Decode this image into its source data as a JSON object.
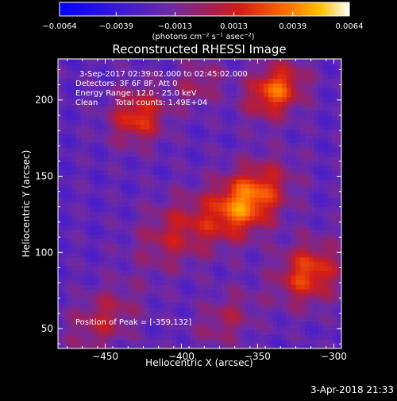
{
  "chart_data": {
    "type": "heatmap",
    "title": "Reconstructed RHESSI Image",
    "xlabel": "Heliocentric X (arcsec)",
    "ylabel": "Heliocentric Y (arcsec)",
    "xlim": [
      -481,
      -295
    ],
    "ylim": [
      37,
      227
    ],
    "x_ticks": [
      -450,
      -400,
      -350,
      -300
    ],
    "y_ticks": [
      50,
      100,
      150,
      200
    ],
    "colorbar": {
      "range": [
        -0.0064,
        0.0064
      ],
      "ticks": [
        -0.0064,
        -0.0039,
        -0.0013,
        0.0013,
        0.0039,
        0.0064
      ],
      "tick_labels": [
        "−0.0064",
        "−0.0039",
        "−0.0013",
        "0.0013",
        "0.0039",
        "0.0064"
      ],
      "unit_label": "(photons cm⁻² s⁻¹ asec⁻²)"
    },
    "annotations": [
      "3-Sep-2017 02:39:02.000 to 02:45:02.000",
      "Detectors: 3F 6F 8F, Att 0",
      "Energy Range: 12.0 - 25.0 keV",
      "Clean",
      "Total counts: 1.49E+04"
    ],
    "peak_label": "Position of Peak = [-359,132]",
    "peak": {
      "x": -359,
      "y": 132,
      "value": 0.0064
    },
    "sources": [
      {
        "x": -359,
        "y": 132,
        "value": 0.0064,
        "sx": 20,
        "sy": 13
      },
      {
        "x": -340,
        "y": 205,
        "value": 0.0055,
        "sx": 14,
        "sy": 11
      },
      {
        "x": -430,
        "y": 188,
        "value": 0.0044,
        "sx": 13,
        "sy": 12
      },
      {
        "x": -318,
        "y": 85,
        "value": 0.0048,
        "sx": 15,
        "sy": 13
      },
      {
        "x": -405,
        "y": 112,
        "value": 0.003,
        "sx": 20,
        "sy": 14
      },
      {
        "x": -453,
        "y": 55,
        "value": 0.0028,
        "sx": 18,
        "sy": 12
      },
      {
        "x": -372,
        "y": 55,
        "value": 0.0022,
        "sx": 16,
        "sy": 11
      },
      {
        "x": -390,
        "y": 210,
        "value": 0.0022,
        "sx": 12,
        "sy": 10
      }
    ],
    "grid": false,
    "colormap": "blue-purple-red-yellow-white"
  },
  "footer": {
    "timestamp": "3-Apr-2018 21:33"
  }
}
